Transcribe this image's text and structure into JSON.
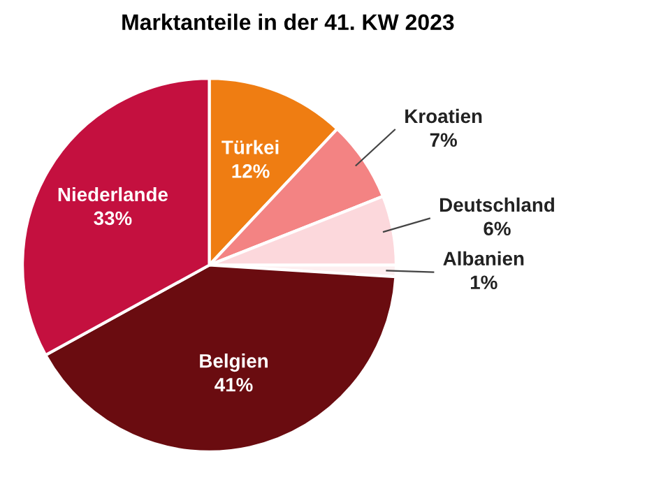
{
  "chart_data": {
    "type": "pie",
    "title": "Marktanteile in der 41. KW 2023",
    "categories": [
      "Türkei",
      "Kroatien",
      "Deutschland",
      "Albanien",
      "Belgien",
      "Niederlande"
    ],
    "values": [
      12,
      7,
      6,
      1,
      41,
      33
    ],
    "value_labels": [
      "12%",
      "7%",
      "6%",
      "1%",
      "41%",
      "33%"
    ],
    "colors": [
      "#ef7d12",
      "#f38383",
      "#fcd8dc",
      "#fdeff0",
      "#6a0c10",
      "#c4103f"
    ]
  }
}
